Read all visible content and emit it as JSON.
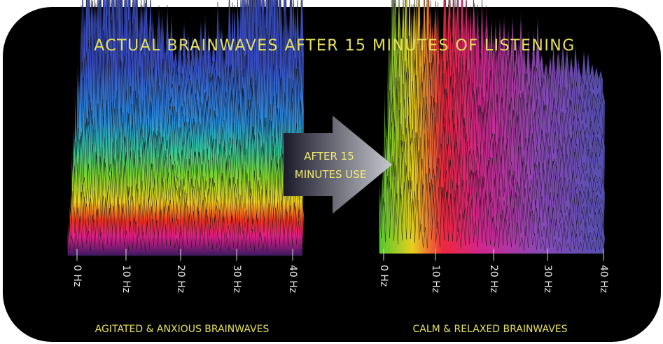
{
  "title": "ACTUAL BRAINWAVES AFTER 15 MINUTES OF LISTENING",
  "arrow_label": [
    "AFTER 15",
    "MINUTES USE"
  ],
  "panels": [
    {
      "caption": "AGITATED & ANXIOUS BRAINWAVES",
      "axis_labels": [
        "0 Hz",
        "10 Hz",
        "20 Hz",
        "30 Hz",
        "40 Hz"
      ]
    },
    {
      "caption": "CALM & RELAXED BRAINWAVES",
      "axis_labels": [
        "0 Hz",
        "10 Hz",
        "20 Hz",
        "30 Hz",
        "40 Hz"
      ]
    }
  ]
}
